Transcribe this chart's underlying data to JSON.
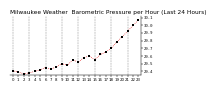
{
  "title": "Milwaukee Weather  Barometric Pressure per Hour (Last 24 Hours)",
  "hours": [
    0,
    1,
    2,
    3,
    4,
    5,
    6,
    7,
    8,
    9,
    10,
    11,
    12,
    13,
    14,
    15,
    16,
    17,
    18,
    19,
    20,
    21,
    22,
    23
  ],
  "pressure": [
    29.41,
    29.39,
    29.37,
    29.38,
    29.4,
    29.42,
    29.45,
    29.43,
    29.46,
    29.5,
    29.48,
    29.55,
    29.52,
    29.58,
    29.6,
    29.55,
    29.62,
    29.65,
    29.7,
    29.78,
    29.85,
    29.92,
    30.0,
    30.07
  ],
  "ylim": [
    29.35,
    30.12
  ],
  "yticks": [
    29.4,
    29.5,
    29.6,
    29.7,
    29.8,
    29.9,
    30.0,
    30.1
  ],
  "ytick_labels": [
    "29.4",
    "29.5",
    "29.6",
    "29.7",
    "29.8",
    "29.9",
    "30.0",
    "30.1"
  ],
  "xlim": [
    -0.5,
    23.5
  ],
  "xticks": [
    0,
    1,
    2,
    3,
    4,
    5,
    6,
    7,
    8,
    9,
    10,
    11,
    12,
    13,
    14,
    15,
    16,
    17,
    18,
    19,
    20,
    21,
    22,
    23
  ],
  "xtick_labels": [
    "0",
    "1",
    "2",
    "3",
    "4",
    "5",
    "6",
    "7",
    "8",
    "9",
    "10",
    "11",
    "12",
    "13",
    "14",
    "15",
    "16",
    "17",
    "18",
    "19",
    "20",
    "21",
    "22",
    "23"
  ],
  "vgrid_positions": [
    0,
    3,
    6,
    9,
    12,
    15,
    18,
    21
  ],
  "line_color": "#dd0000",
  "marker_color": "#000000",
  "bg_color": "#ffffff",
  "grid_color": "#888888",
  "title_fontsize": 4.2,
  "tick_fontsize": 2.8,
  "marker_size": 1.5,
  "line_width": 0.5,
  "marker_style": "s"
}
